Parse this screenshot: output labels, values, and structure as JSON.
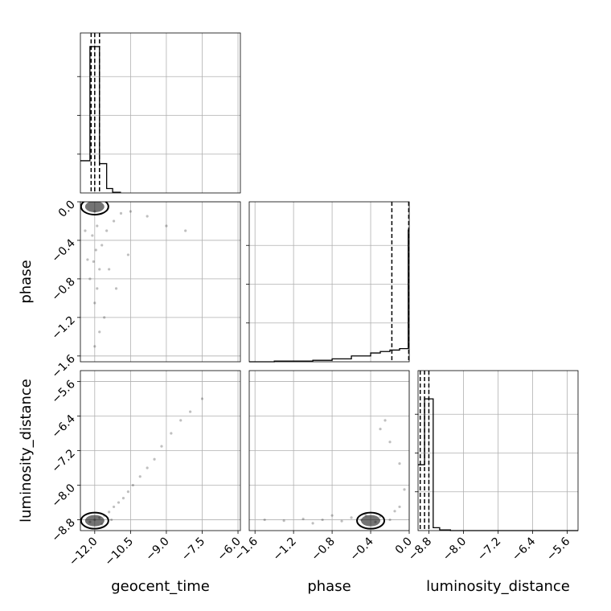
{
  "chart_data": {
    "type": "scatter",
    "variant": "corner-plot",
    "parameters": [
      {
        "key": "geocent_time",
        "label": "geocent_time",
        "range": [
          -12.6,
          -5.9
        ],
        "ticks": [
          -12.0,
          -10.5,
          -9.0,
          -7.5,
          -6.0
        ],
        "tick_labels": [
          "−12.0",
          "−10.5",
          "−9.0",
          "−7.5",
          "−6.0"
        ]
      },
      {
        "key": "phase",
        "label": "phase",
        "range": [
          -1.66,
          0.0
        ],
        "ticks": [
          -1.6,
          -1.2,
          -0.8,
          -0.4,
          0.0
        ],
        "tick_labels": [
          "−1.6",
          "−1.2",
          "−0.8",
          "−0.4",
          "0.0"
        ]
      },
      {
        "key": "luminosity_distance",
        "label": "luminosity_distance",
        "range": [
          -9.05,
          -5.35
        ],
        "ticks": [
          -8.8,
          -8.0,
          -7.2,
          -6.4,
          -5.6
        ],
        "tick_labels": [
          "−8.8",
          "−8.0",
          "−7.2",
          "−6.4",
          "−5.6"
        ]
      }
    ],
    "histograms": [
      {
        "param": "geocent_time",
        "dashed_quantiles": [
          -12.15,
          -12.0,
          -11.8
        ],
        "bins": [
          [
            -12.6,
            -12.2,
            0.22
          ],
          [
            -12.2,
            -12.0,
            1.0
          ],
          [
            -12.0,
            -11.8,
            1.0
          ],
          [
            -11.8,
            -11.5,
            0.2
          ],
          [
            -11.5,
            -11.25,
            0.03
          ],
          [
            -11.25,
            -10.9,
            0.005
          ]
        ]
      },
      {
        "param": "phase",
        "dashed_quantiles": [
          -0.18,
          -0.005
        ],
        "bins": [
          [
            -1.66,
            -1.4,
            0.0
          ],
          [
            -1.4,
            -1.0,
            0.005
          ],
          [
            -1.0,
            -0.8,
            0.01
          ],
          [
            -0.8,
            -0.6,
            0.02
          ],
          [
            -0.6,
            -0.4,
            0.04
          ],
          [
            -0.4,
            -0.3,
            0.06
          ],
          [
            -0.3,
            -0.2,
            0.07
          ],
          [
            -0.2,
            -0.1,
            0.08
          ],
          [
            -0.1,
            -0.01,
            0.09
          ],
          [
            -0.01,
            0.0,
            0.9
          ]
        ]
      },
      {
        "param": "luminosity_distance",
        "dashed_quantiles": [
          -9.0,
          -8.9,
          -8.8
        ],
        "bins": [
          [
            -9.05,
            -8.9,
            0.45
          ],
          [
            -8.9,
            -8.7,
            0.9
          ],
          [
            -8.7,
            -8.55,
            0.02
          ],
          [
            -8.55,
            -8.3,
            0.005
          ],
          [
            -8.3,
            -5.35,
            0.0
          ]
        ]
      }
    ],
    "pairs": [
      {
        "x": "geocent_time",
        "y": "phase",
        "density_mode": [
          -12.0,
          -0.05
        ],
        "samples": [
          [
            -12.0,
            -0.1
          ],
          [
            -11.9,
            -0.25
          ],
          [
            -12.1,
            -0.35
          ],
          [
            -11.95,
            -0.5
          ],
          [
            -12.05,
            -0.62
          ],
          [
            -11.8,
            -0.7
          ],
          [
            -12.2,
            -0.8
          ],
          [
            -11.9,
            -0.9
          ],
          [
            -12.0,
            -1.05
          ],
          [
            -11.7,
            -0.45
          ],
          [
            -11.5,
            -0.3
          ],
          [
            -11.2,
            -0.2
          ],
          [
            -10.9,
            -0.12
          ],
          [
            -10.5,
            -0.1
          ],
          [
            -9.8,
            -0.15
          ],
          [
            -9.0,
            -0.25
          ],
          [
            -8.2,
            -0.3
          ],
          [
            -11.6,
            -1.2
          ],
          [
            -11.8,
            -1.35
          ],
          [
            -12.0,
            -1.5
          ],
          [
            -12.3,
            -0.6
          ],
          [
            -12.4,
            -0.3
          ],
          [
            -11.4,
            -0.7
          ],
          [
            -11.1,
            -0.9
          ],
          [
            -10.6,
            -0.55
          ]
        ]
      },
      {
        "x": "geocent_time",
        "y": "luminosity_distance",
        "density_mode": [
          -12.0,
          -8.82
        ],
        "samples": [
          [
            -12.0,
            -8.8
          ],
          [
            -11.8,
            -8.75
          ],
          [
            -11.6,
            -8.7
          ],
          [
            -11.4,
            -8.62
          ],
          [
            -11.2,
            -8.5
          ],
          [
            -11.0,
            -8.4
          ],
          [
            -10.8,
            -8.3
          ],
          [
            -10.6,
            -8.15
          ],
          [
            -10.4,
            -8.0
          ],
          [
            -10.1,
            -7.8
          ],
          [
            -9.8,
            -7.6
          ],
          [
            -9.5,
            -7.4
          ],
          [
            -9.2,
            -7.1
          ],
          [
            -8.8,
            -6.8
          ],
          [
            -8.4,
            -6.5
          ],
          [
            -8.0,
            -6.3
          ],
          [
            -7.5,
            -6.0
          ],
          [
            -12.2,
            -8.85
          ],
          [
            -11.7,
            -8.9
          ],
          [
            -11.3,
            -8.8
          ]
        ]
      },
      {
        "x": "phase",
        "y": "luminosity_distance",
        "density_mode": [
          -0.4,
          -8.82
        ],
        "samples": [
          [
            -1.5,
            -8.8
          ],
          [
            -1.3,
            -8.82
          ],
          [
            -1.1,
            -8.78
          ],
          [
            -0.9,
            -8.8
          ],
          [
            -0.7,
            -8.83
          ],
          [
            -0.6,
            -8.75
          ],
          [
            -0.5,
            -8.8
          ],
          [
            -0.45,
            -8.7
          ],
          [
            -0.35,
            -8.85
          ],
          [
            -0.3,
            -8.72
          ],
          [
            -0.2,
            -8.8
          ],
          [
            -0.15,
            -8.6
          ],
          [
            -0.1,
            -8.5
          ],
          [
            -0.3,
            -6.7
          ],
          [
            -0.25,
            -6.5
          ],
          [
            -0.2,
            -7.0
          ],
          [
            -0.1,
            -7.5
          ],
          [
            -0.05,
            -8.1
          ],
          [
            -0.8,
            -8.7
          ],
          [
            -1.0,
            -8.88
          ]
        ]
      }
    ],
    "grid": true
  }
}
